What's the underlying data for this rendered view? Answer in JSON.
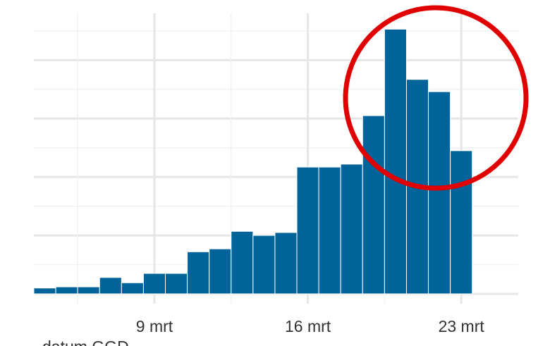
{
  "chart_data": {
    "type": "bar",
    "color": "#00639a",
    "xlabel": "datum GGD",
    "x": [
      4,
      5,
      6,
      7,
      8,
      9,
      10,
      11,
      12,
      13,
      14,
      15,
      16,
      17,
      18,
      19,
      20,
      21,
      22,
      23
    ],
    "values": [
      10,
      12,
      12,
      28,
      19,
      35,
      35,
      72,
      77,
      107,
      100,
      105,
      217,
      217,
      222,
      305,
      453,
      367,
      346,
      245
    ],
    "xlim": [
      3.5,
      25.6
    ],
    "ylim": [
      0,
      480
    ],
    "xticks": [
      {
        "value": 9,
        "label": "9 mrt"
      },
      {
        "value": 16,
        "label": "16 mrt"
      },
      {
        "value": 23,
        "label": "23 mrt"
      }
    ],
    "xminor": [
      5.5,
      12.5,
      19.5
    ],
    "ygrid": [
      0,
      50,
      100,
      150,
      200,
      250,
      300,
      350,
      400,
      450
    ],
    "grid": true
  }
}
